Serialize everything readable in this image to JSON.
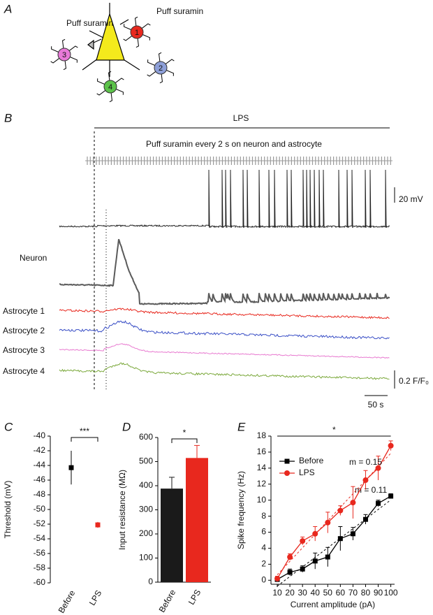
{
  "panel_a": {
    "label": "A",
    "puff_labels": [
      "Puff suramin",
      "Puff suramin"
    ],
    "astrocytes": [
      {
        "label": "1",
        "color": "#e8281e"
      },
      {
        "label": "2",
        "color": "#8d9fd8"
      },
      {
        "label": "3",
        "color": "#e87ad8"
      },
      {
        "label": "4",
        "color": "#5cc24a"
      }
    ]
  },
  "panel_b": {
    "label": "B",
    "condition": "LPS",
    "puff_text": "Puff suramin every 2 s on neuron and astrocyte",
    "neuron": {
      "name": "Neuron",
      "color": "#5a5a5a"
    },
    "traces": [
      {
        "name": "Astrocyte 1",
        "color": "#e8281e"
      },
      {
        "name": "Astrocyte 2",
        "color": "#3a4fc6"
      },
      {
        "name": "Astrocyte 3",
        "color": "#e87ad0"
      },
      {
        "name": "Astrocyte 4",
        "color": "#7aa83a"
      }
    ],
    "scale_voltage": "20 mV",
    "scale_fluorescence": "0.2 F/F₀",
    "scale_time": "50 s"
  },
  "chart_data": [
    {
      "panel": "C",
      "type": "point",
      "ylabel": "Threshold (mV)",
      "categories": [
        "Before",
        "LPS"
      ],
      "values": [
        -44.3,
        -52.1
      ],
      "errors": [
        2.3,
        0.4
      ],
      "colors": [
        "#000000",
        "#e8281e"
      ],
      "ylim": [
        -60,
        -40
      ],
      "yticks": [
        -60,
        -58,
        -56,
        -54,
        -52,
        -50,
        -48,
        -46,
        -44,
        -42,
        -40
      ],
      "significance": "***"
    },
    {
      "panel": "D",
      "type": "bar",
      "ylabel": "Input resistance (MΩ)",
      "categories": [
        "Before",
        "LPS"
      ],
      "values": [
        388,
        515
      ],
      "errors": [
        47,
        52
      ],
      "colors": [
        "#1a1a1a",
        "#e8281e"
      ],
      "ylim": [
        0,
        600
      ],
      "yticks": [
        0,
        100,
        200,
        300,
        400,
        500,
        600
      ],
      "significance": "*"
    },
    {
      "panel": "E",
      "type": "line",
      "xlabel": "Current amplitude (pA)",
      "ylabel": "Spike frequency (Hz)",
      "x": [
        10,
        20,
        30,
        40,
        50,
        60,
        70,
        80,
        90,
        100
      ],
      "series": [
        {
          "name": "Before",
          "color": "#000000",
          "marker": "square",
          "values": [
            0.1,
            1,
            1.4,
            2.4,
            2.9,
            5.2,
            5.8,
            7.6,
            9.6,
            10.5
          ],
          "errors": [
            0.3,
            0.4,
            0.4,
            1,
            1.2,
            1.5,
            0.8,
            0.6,
            0.4,
            0.3
          ],
          "fit_label": "m = 0.11"
        },
        {
          "name": "LPS",
          "color": "#e8281e",
          "marker": "circle",
          "values": [
            0.2,
            2.9,
            4.9,
            5.8,
            7.2,
            8.7,
            9.7,
            12.5,
            14,
            16.8
          ],
          "errors": [
            0.3,
            0.4,
            0.5,
            0.9,
            1.3,
            0.6,
            2,
            1.2,
            1.5,
            0.6
          ],
          "fit_label": "m = 0.15"
        }
      ],
      "xlim": [
        5,
        103
      ],
      "xticks": [
        10,
        20,
        30,
        40,
        50,
        60,
        70,
        80,
        90,
        100
      ],
      "ylim": [
        -0.5,
        18
      ],
      "yticks": [
        0,
        2,
        4,
        6,
        8,
        10,
        12,
        14,
        16,
        18
      ],
      "significance": "*",
      "legend": "upper-left"
    }
  ]
}
